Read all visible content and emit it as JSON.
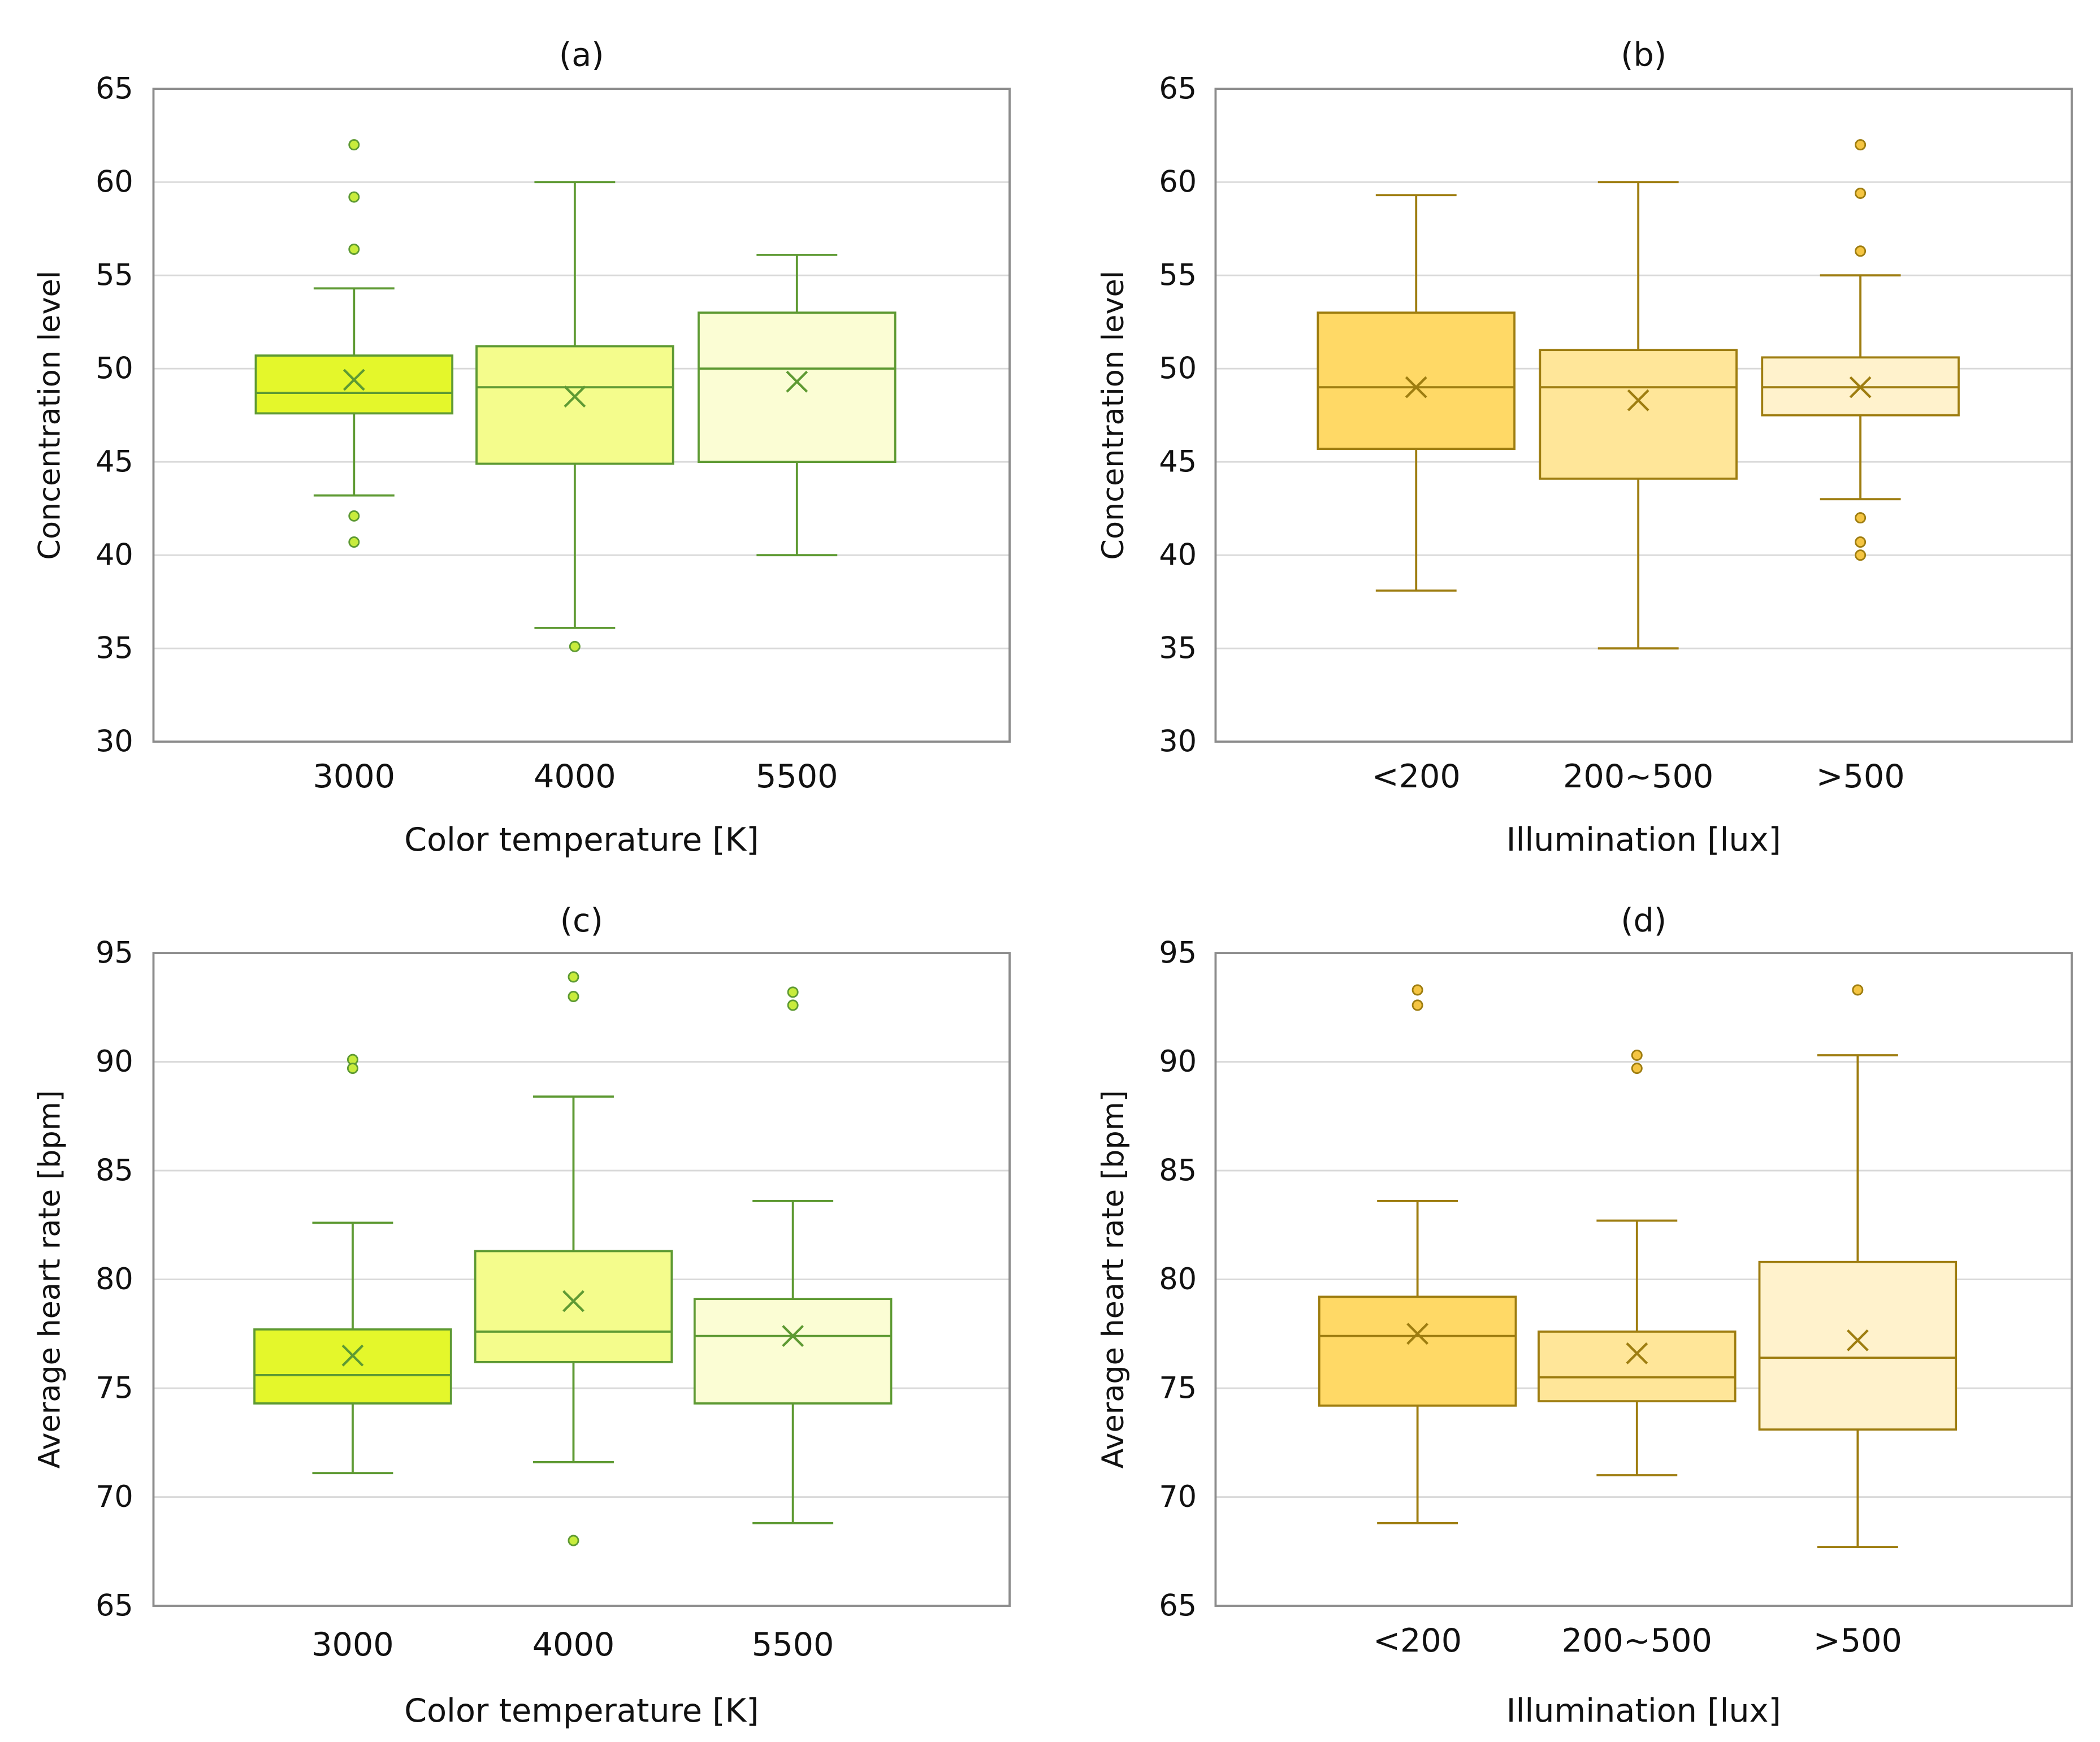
{
  "chart_data": [
    {
      "type": "box",
      "title": "(a)",
      "xlabel": "Color temperature [K]",
      "ylabel": "Concentration level",
      "ylim": [
        30,
        65
      ],
      "yticks": [
        30,
        35,
        40,
        45,
        50,
        55,
        60,
        65
      ],
      "grid": true,
      "categories": [
        "3000",
        "4000",
        "5500"
      ],
      "boxes": [
        {
          "category": "3000",
          "whisker_low": 43.2,
          "q1": 47.6,
          "median": 48.7,
          "q3": 50.7,
          "whisker_high": 54.3,
          "mean": 49.4,
          "outliers": [
            62.0,
            59.2,
            56.4,
            42.1,
            40.7
          ]
        },
        {
          "category": "4000",
          "whisker_low": 36.1,
          "q1": 44.9,
          "median": 49.0,
          "q3": 51.2,
          "whisker_high": 60.0,
          "mean": 48.5,
          "outliers": [
            35.1
          ]
        },
        {
          "category": "5500",
          "whisker_low": 40.0,
          "q1": 45.0,
          "median": 50.0,
          "q3": 53.0,
          "whisker_high": 56.1,
          "mean": 49.3,
          "outliers": []
        }
      ],
      "colors": {
        "fills": [
          "#e4f72b",
          "#f4fc8c",
          "#fbfdd4"
        ],
        "stroke": "#5e9a33",
        "outlier_fill": "#c8ec3c"
      }
    },
    {
      "type": "box",
      "title": "(b)",
      "xlabel": "Illumination [lux]",
      "ylabel": "Concentration level",
      "ylim": [
        30,
        65
      ],
      "yticks": [
        30,
        35,
        40,
        45,
        50,
        55,
        60,
        65
      ],
      "grid": true,
      "categories": [
        "<200",
        "200~500",
        ">500"
      ],
      "boxes": [
        {
          "category": "<200",
          "whisker_low": 38.1,
          "q1": 45.7,
          "median": 49.0,
          "q3": 53.0,
          "whisker_high": 59.3,
          "mean": 49.0,
          "outliers": []
        },
        {
          "category": "200~500",
          "whisker_low": 35.0,
          "q1": 44.1,
          "median": 49.0,
          "q3": 51.0,
          "whisker_high": 60.0,
          "mean": 48.3,
          "outliers": []
        },
        {
          "category": ">500",
          "whisker_low": 43.0,
          "q1": 47.5,
          "median": 49.0,
          "q3": 50.6,
          "whisker_high": 55.0,
          "mean": 49.0,
          "outliers": [
            62.0,
            59.4,
            56.3,
            42.0,
            40.7,
            40.0
          ]
        }
      ],
      "colors": {
        "fills": [
          "#ffd966",
          "#ffe699",
          "#fff2cc"
        ],
        "stroke": "#9e7d10",
        "outlier_fill": "#f5c542"
      }
    },
    {
      "type": "box",
      "title": "(c)",
      "xlabel": "Color temperature [K]",
      "ylabel": "Average heart rate [bpm]",
      "ylim": [
        65,
        95
      ],
      "yticks": [
        65,
        70,
        75,
        80,
        85,
        90,
        95
      ],
      "grid": true,
      "categories": [
        "3000",
        "4000",
        "5500"
      ],
      "boxes": [
        {
          "category": "3000",
          "whisker_low": 71.1,
          "q1": 74.3,
          "median": 75.6,
          "q3": 77.7,
          "whisker_high": 82.6,
          "mean": 76.5,
          "outliers": [
            90.1,
            89.7
          ]
        },
        {
          "category": "4000",
          "whisker_low": 71.6,
          "q1": 76.2,
          "median": 77.6,
          "q3": 81.3,
          "whisker_high": 88.4,
          "mean": 79.0,
          "outliers": [
            93.9,
            93.0,
            68.0
          ]
        },
        {
          "category": "5500",
          "whisker_low": 68.8,
          "q1": 74.3,
          "median": 77.4,
          "q3": 79.1,
          "whisker_high": 83.6,
          "mean": 77.4,
          "outliers": [
            93.2,
            92.6
          ]
        }
      ],
      "colors": {
        "fills": [
          "#e4f72b",
          "#f4fc8c",
          "#fbfdd4"
        ],
        "stroke": "#5e9a33",
        "outlier_fill": "#c8ec3c"
      }
    },
    {
      "type": "box",
      "title": "(d)",
      "xlabel": "Illumination [lux]",
      "ylabel": "Average heart rate [bpm]",
      "ylim": [
        65,
        95
      ],
      "yticks": [
        65,
        70,
        75,
        80,
        85,
        90,
        95
      ],
      "grid": true,
      "categories": [
        "<200",
        "200~500",
        ">500"
      ],
      "boxes": [
        {
          "category": "<200",
          "whisker_low": 68.8,
          "q1": 74.2,
          "median": 77.4,
          "q3": 79.2,
          "whisker_high": 83.6,
          "mean": 77.5,
          "outliers": [
            93.3,
            92.6
          ]
        },
        {
          "category": "200~500",
          "whisker_low": 71.0,
          "q1": 74.4,
          "median": 75.5,
          "q3": 77.6,
          "whisker_high": 82.7,
          "mean": 76.6,
          "outliers": [
            90.3,
            89.7
          ]
        },
        {
          "category": ">500",
          "whisker_low": 67.7,
          "q1": 73.1,
          "median": 76.4,
          "q3": 80.8,
          "whisker_high": 90.3,
          "mean": 77.2,
          "outliers": [
            93.3
          ]
        }
      ],
      "colors": {
        "fills": [
          "#ffd966",
          "#ffe699",
          "#fff2cc"
        ],
        "stroke": "#9e7d10",
        "outlier_fill": "#f5c542"
      }
    }
  ]
}
